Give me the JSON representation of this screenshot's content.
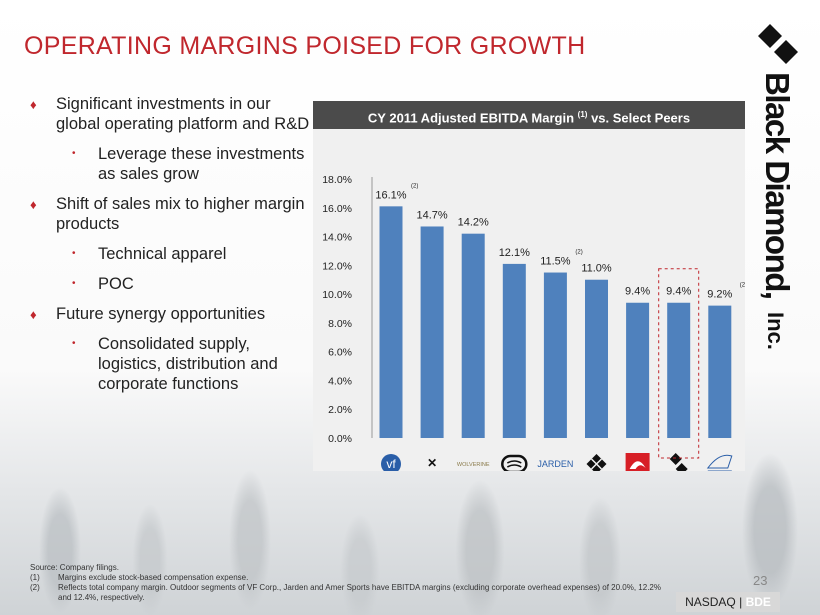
{
  "title": "OPERATING MARGINS POISED FOR GROWTH",
  "brand": "Black Diamond, Inc.",
  "bullets": [
    {
      "text": "Significant investments in our global operating platform and R&D",
      "subs": [
        "Leverage these investments as sales grow"
      ]
    },
    {
      "text": "Shift of sales mix to higher margin products",
      "subs": [
        "Technical apparel",
        "POC"
      ]
    },
    {
      "text": "Future synergy opportunities",
      "subs": [
        "Consolidated supply, logistics, distribution and corporate functions"
      ]
    }
  ],
  "chart_data": {
    "type": "bar",
    "title": "CY 2011 Adjusted EBITDA Margin",
    "title_footnote": "(1)",
    "title_suffix": "vs. Select Peers",
    "categories": [
      "vf-logo",
      "under-armour-logo",
      "wolverine-logo",
      "billabong-logo",
      "jarden-logo",
      "columbia-logo",
      "quiksilver-logo",
      "black-diamond-logo",
      "amer-sports-logo"
    ],
    "values": [
      16.1,
      14.7,
      14.2,
      12.1,
      11.5,
      11.0,
      9.4,
      9.4,
      9.2
    ],
    "data_labels": [
      "16.1%",
      "14.7%",
      "14.2%",
      "12.1%",
      "11.5%",
      "11.0%",
      "9.4%",
      "9.4%",
      "9.2%"
    ],
    "footnotes": [
      "(2)",
      "",
      "",
      "",
      "(2)",
      "",
      "",
      "",
      "(2)"
    ],
    "highlight": "black-diamond-logo",
    "yticks": [
      "0.0%",
      "2.0%",
      "4.0%",
      "6.0%",
      "8.0%",
      "10.0%",
      "12.0%",
      "14.0%",
      "16.0%",
      "18.0%"
    ],
    "ylim": [
      0,
      18
    ],
    "bar_color": "#4f81bd",
    "highlight_color": "#c0272d",
    "logo_text": {
      "vf": "vf",
      "wolverine": "WOLVERINE",
      "jarden": "JARDEN"
    }
  },
  "notes": {
    "source": "Source: Company filings.",
    "items": [
      [
        "(1)",
        "Margins exclude stock-based compensation expense."
      ],
      [
        "(2)",
        "Reflects total company margin. Outdoor segments of VF Corp., Jarden and Amer Sports have EBITDA margins (excluding corporate overhead expenses) of 20.0%, 12.2% and 12.4%, respectively."
      ]
    ]
  },
  "page_number": "23",
  "ticker": {
    "exchange": "NASDAQ",
    "sep": " | ",
    "symbol": "BDE"
  },
  "colors": {
    "accent": "#c0272d",
    "header": "#4b4b4b"
  }
}
